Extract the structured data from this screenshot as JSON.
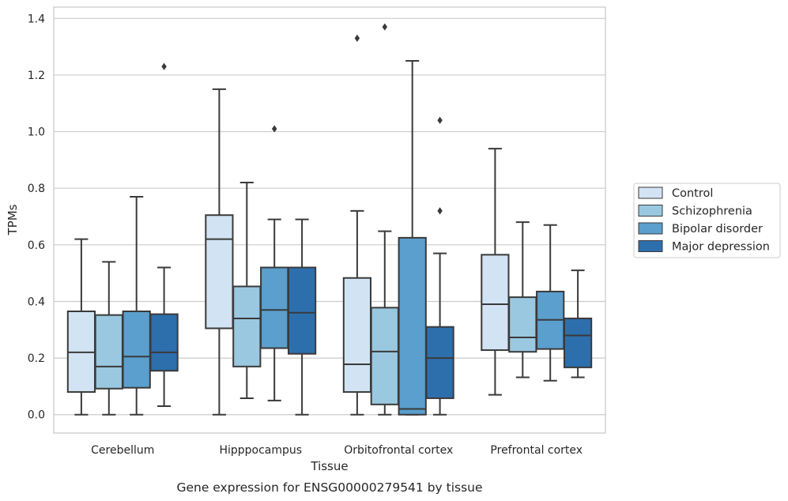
{
  "chart_data": {
    "type": "box",
    "caption": "Gene expression for ENSG00000279541 by tissue",
    "xlabel": "Tissue",
    "ylabel": "TPMs",
    "ylim": [
      -0.065,
      1.44
    ],
    "yticks": [
      0.0,
      0.2,
      0.4,
      0.6,
      0.8,
      1.0,
      1.2,
      1.4
    ],
    "ytick_labels": [
      "0.0",
      "0.2",
      "0.4",
      "0.6",
      "0.8",
      "1.0",
      "1.2",
      "1.4"
    ],
    "grid": true,
    "legend_position": "right",
    "categories": [
      "Cerebellum",
      "Hipppocampus",
      "Orbitofrontal cortex",
      "Prefrontal cortex"
    ],
    "series": [
      {
        "name": "Control",
        "color": "#d2e3f3",
        "boxes": [
          {
            "whislo": 0.0,
            "q1": 0.08,
            "med": 0.22,
            "q3": 0.365,
            "whishi": 0.62,
            "fliers": []
          },
          {
            "whislo": 0.0,
            "q1": 0.305,
            "med": 0.62,
            "q3": 0.705,
            "whishi": 1.15,
            "fliers": []
          },
          {
            "whislo": 0.0,
            "q1": 0.08,
            "med": 0.178,
            "q3": 0.483,
            "whishi": 0.72,
            "fliers": [
              1.33
            ]
          },
          {
            "whislo": 0.07,
            "q1": 0.228,
            "med": 0.39,
            "q3": 0.565,
            "whishi": 0.94,
            "fliers": []
          }
        ]
      },
      {
        "name": "Schizophrenia",
        "color": "#9ac8e0",
        "boxes": [
          {
            "whislo": 0.0,
            "q1": 0.092,
            "med": 0.17,
            "q3": 0.352,
            "whishi": 0.54,
            "fliers": []
          },
          {
            "whislo": 0.058,
            "q1": 0.17,
            "med": 0.34,
            "q3": 0.453,
            "whishi": 0.82,
            "fliers": []
          },
          {
            "whislo": 0.0,
            "q1": 0.036,
            "med": 0.223,
            "q3": 0.378,
            "whishi": 0.648,
            "fliers": [
              1.37
            ]
          },
          {
            "whislo": 0.132,
            "q1": 0.222,
            "med": 0.273,
            "q3": 0.415,
            "whishi": 0.68,
            "fliers": []
          }
        ]
      },
      {
        "name": "Bipolar disorder",
        "color": "#5a9fcd",
        "boxes": [
          {
            "whislo": 0.0,
            "q1": 0.095,
            "med": 0.205,
            "q3": 0.365,
            "whishi": 0.77,
            "fliers": []
          },
          {
            "whislo": 0.05,
            "q1": 0.235,
            "med": 0.37,
            "q3": 0.52,
            "whishi": 0.69,
            "fliers": [
              1.01
            ]
          },
          {
            "whislo": 0.0,
            "q1": 0.0,
            "med": 0.02,
            "q3": 0.625,
            "whishi": 1.25,
            "fliers": []
          },
          {
            "whislo": 0.12,
            "q1": 0.232,
            "med": 0.335,
            "q3": 0.435,
            "whishi": 0.67,
            "fliers": []
          }
        ]
      },
      {
        "name": "Major depression",
        "color": "#2d6fad",
        "boxes": [
          {
            "whislo": 0.03,
            "q1": 0.155,
            "med": 0.22,
            "q3": 0.355,
            "whishi": 0.52,
            "fliers": [
              1.23
            ]
          },
          {
            "whislo": 0.0,
            "q1": 0.215,
            "med": 0.36,
            "q3": 0.52,
            "whishi": 0.69,
            "fliers": []
          },
          {
            "whislo": 0.0,
            "q1": 0.058,
            "med": 0.2,
            "q3": 0.31,
            "whishi": 0.57,
            "fliers": [
              0.72,
              1.04
            ]
          },
          {
            "whislo": 0.132,
            "q1": 0.167,
            "med": 0.28,
            "q3": 0.34,
            "whishi": 0.51,
            "fliers": []
          }
        ]
      }
    ]
  }
}
